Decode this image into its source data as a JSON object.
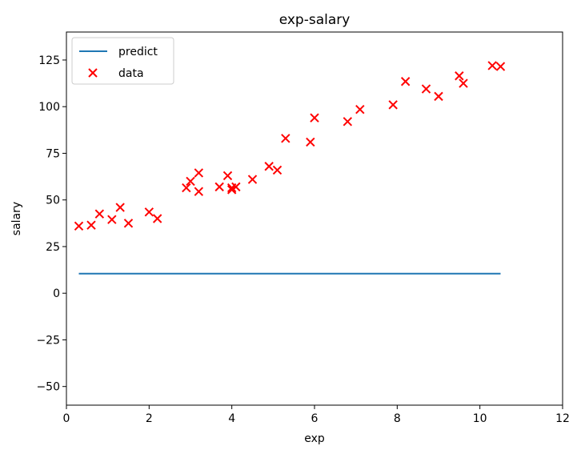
{
  "chart_data": {
    "type": "line+scatter",
    "title": "exp-salary",
    "xlabel": "exp",
    "ylabel": "salary",
    "xlim": [
      0,
      12
    ],
    "ylim": [
      -60,
      140
    ],
    "x_ticks": [
      "0",
      "2",
      "4",
      "6",
      "8",
      "10",
      "12"
    ],
    "y_ticks": [
      "−50",
      "−25",
      "0",
      "25",
      "50",
      "75",
      "100",
      "125"
    ],
    "x_tick_values": [
      0,
      2,
      4,
      6,
      8,
      10,
      12
    ],
    "y_tick_values": [
      -50,
      -25,
      0,
      25,
      50,
      75,
      100,
      125
    ],
    "grid": false,
    "legend_position": "top-left",
    "legend": [
      "predict",
      "data"
    ],
    "series": [
      {
        "name": "predict",
        "kind": "line",
        "color": "#1f77b4",
        "x": [
          0.3,
          10.5
        ],
        "y": [
          10.5,
          10.5
        ]
      },
      {
        "name": "data",
        "kind": "scatter",
        "marker": "x",
        "color": "#ff0000",
        "x": [
          0.3,
          0.6,
          0.8,
          1.1,
          1.3,
          1.5,
          2.0,
          2.2,
          2.9,
          3.0,
          3.2,
          3.2,
          3.7,
          3.9,
          4.0,
          4.0,
          4.1,
          4.5,
          4.9,
          5.1,
          5.3,
          5.9,
          6.0,
          6.8,
          7.1,
          7.9,
          8.2,
          8.7,
          9.0,
          9.5,
          9.6,
          10.3,
          10.5
        ],
        "y": [
          36,
          36.5,
          42.5,
          39.5,
          46,
          37.5,
          43.5,
          40,
          56.5,
          60,
          54.5,
          64.5,
          57,
          63,
          55.5,
          56.5,
          57,
          61,
          68,
          66,
          83,
          81,
          94,
          92,
          98.5,
          101,
          113.5,
          109.5,
          105.5,
          116.5,
          112.5,
          122,
          121.5
        ]
      }
    ]
  }
}
